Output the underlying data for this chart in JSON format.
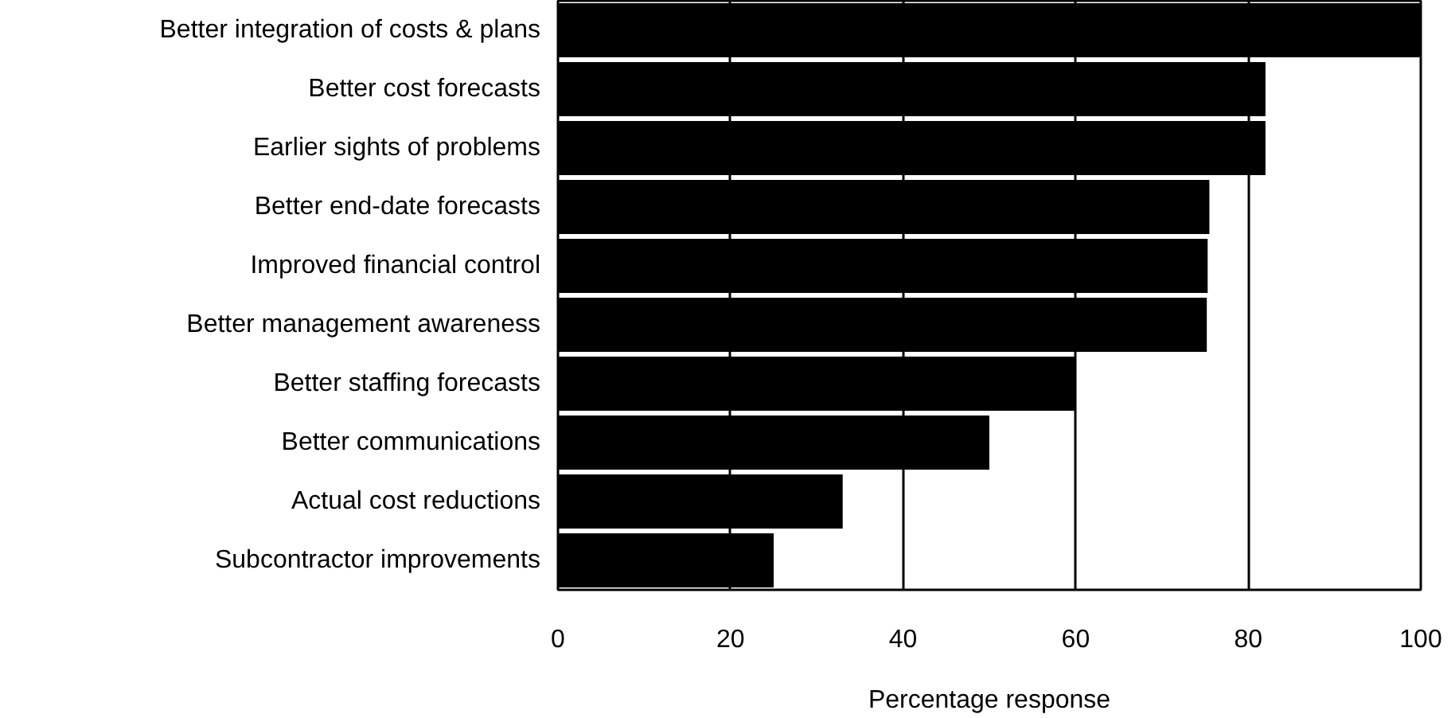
{
  "chart_data": {
    "type": "bar",
    "orientation": "horizontal",
    "xlabel": "Percentage response",
    "categories": [
      "Better integration of costs & plans",
      "Better cost forecasts",
      "Earlier sights of problems",
      "Better end-date forecasts",
      "Improved financial control",
      "Better management awareness",
      "Better staffing forecasts",
      "Better communications",
      "Actual cost reductions",
      "Subcontractor improvements"
    ],
    "values": [
      100,
      82,
      82,
      75.5,
      75.3,
      75.2,
      60,
      50,
      33,
      25
    ],
    "color": "#000000",
    "xlim": [
      0,
      100
    ],
    "xticks": [
      0,
      20,
      40,
      60,
      80,
      100
    ],
    "grid": "x"
  }
}
